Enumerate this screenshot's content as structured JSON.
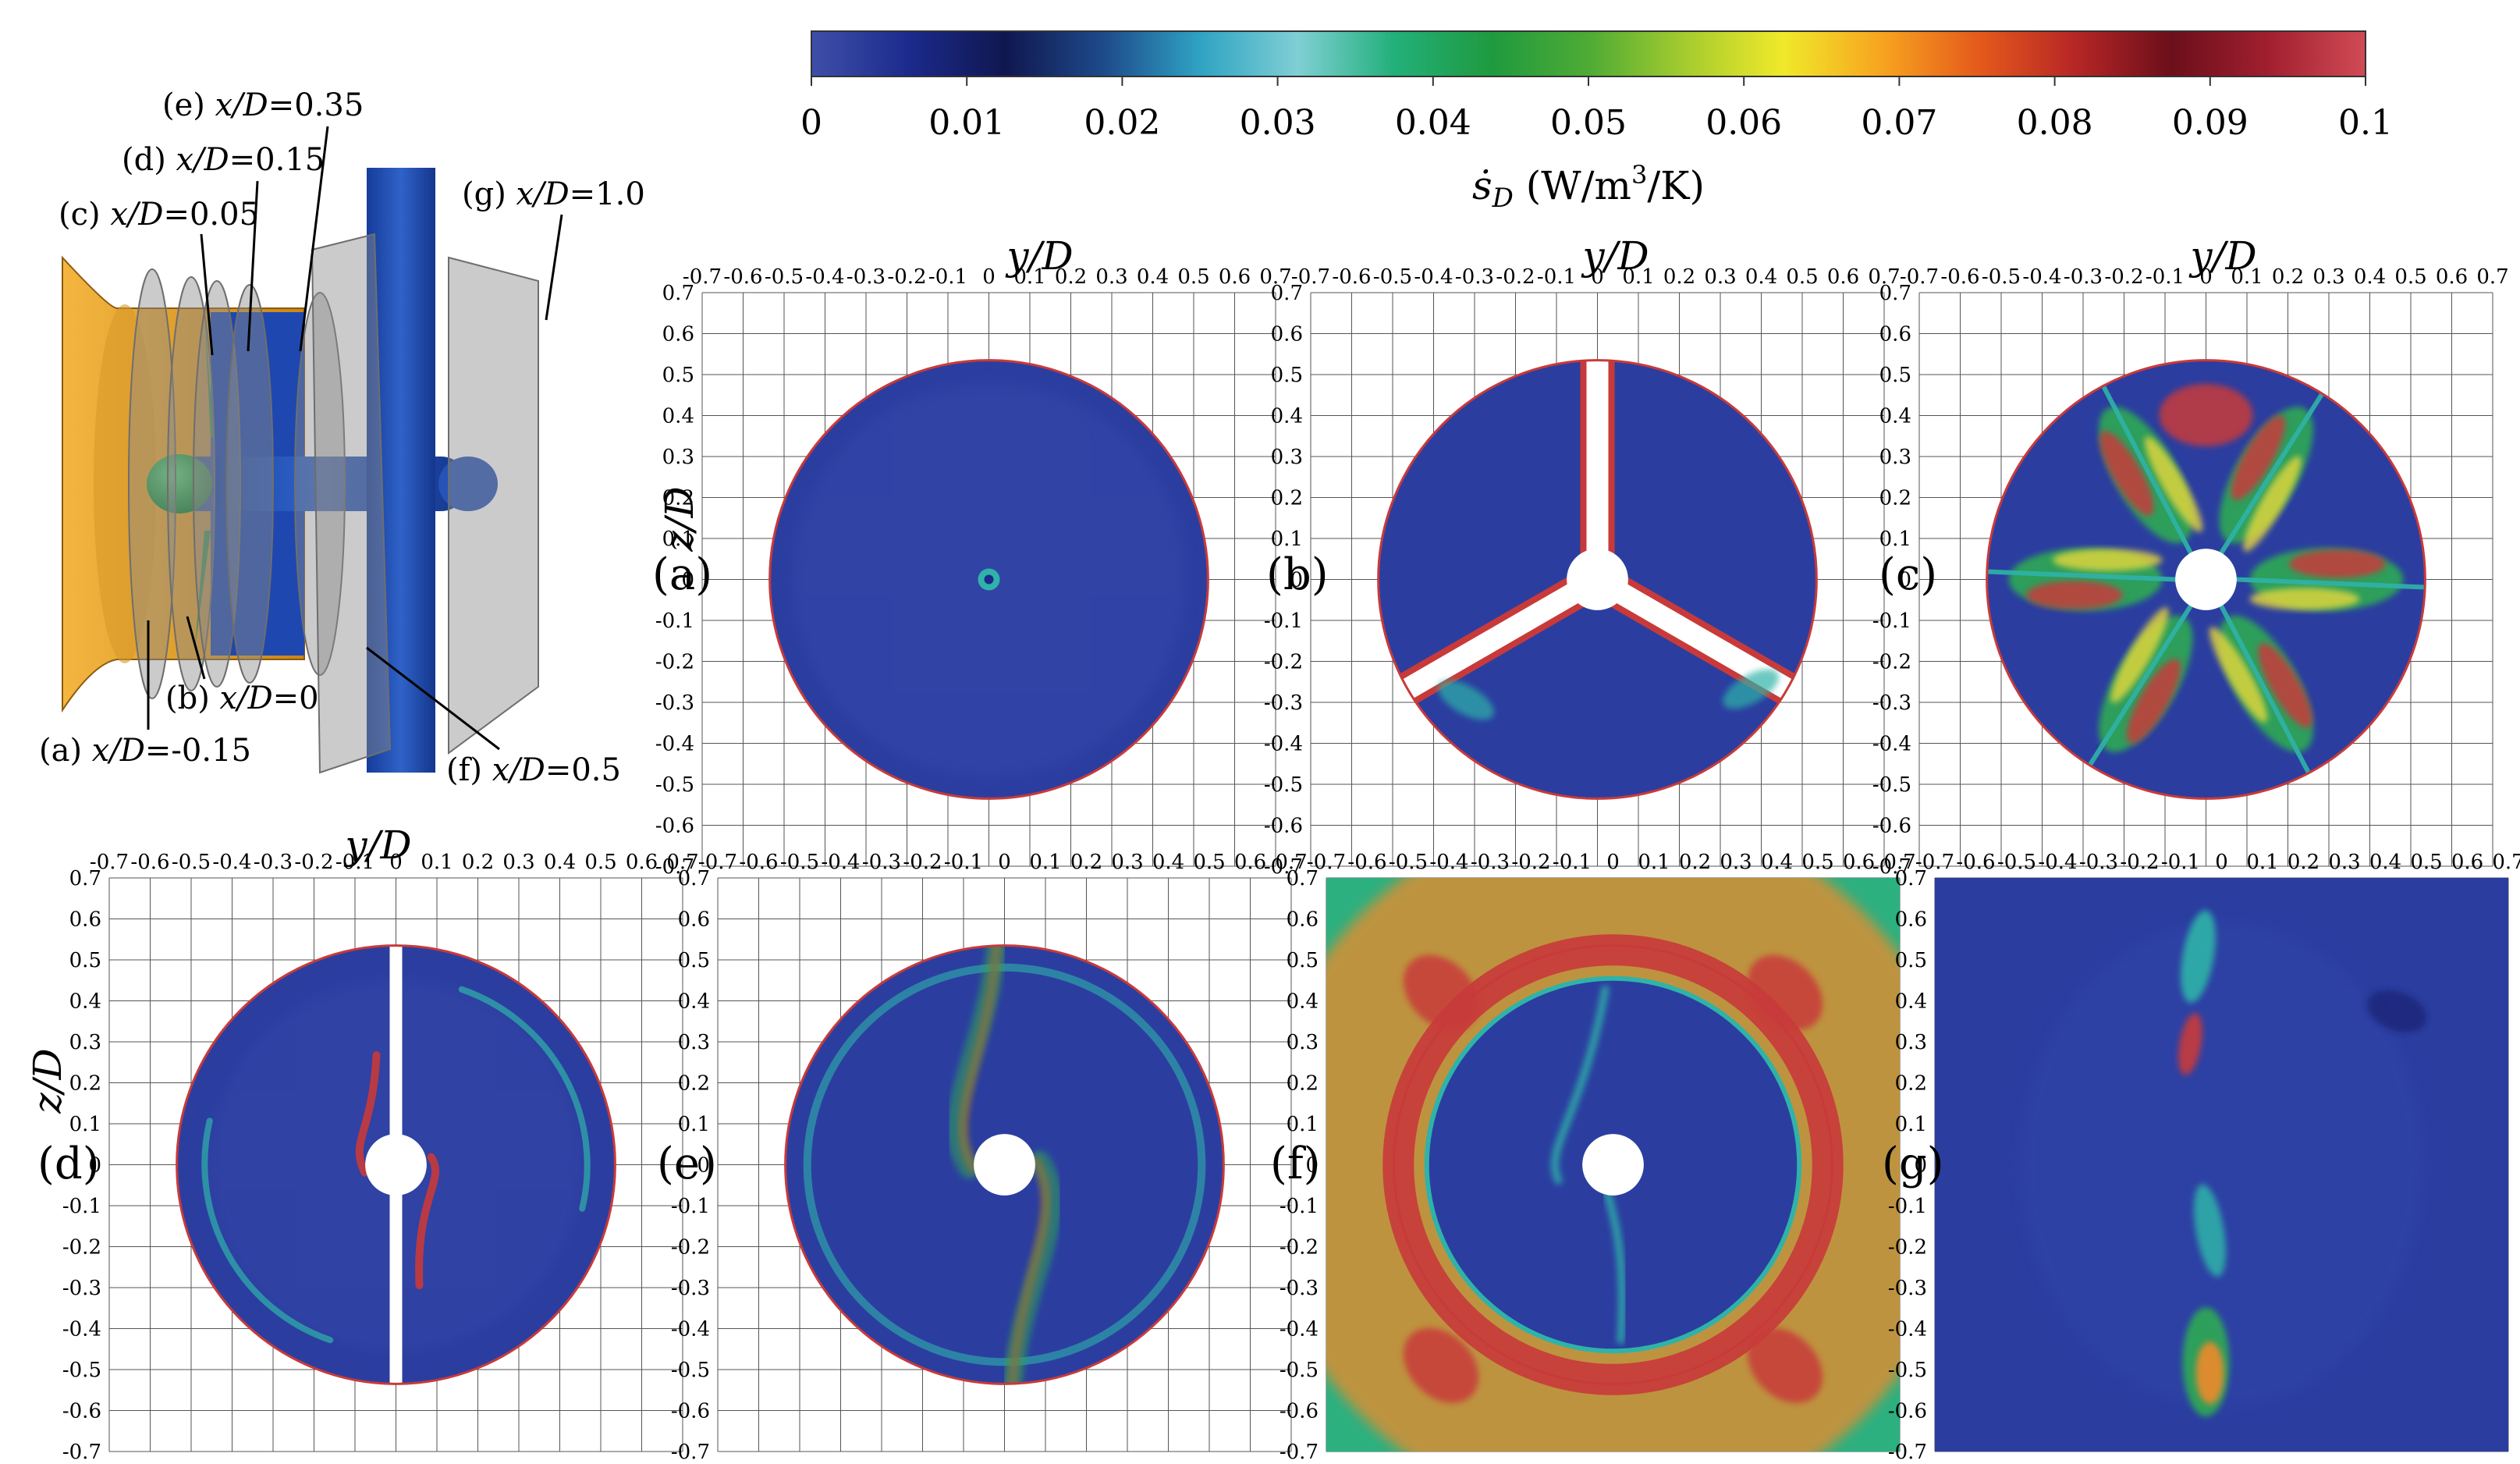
{
  "figure": {
    "colorbar": {
      "ticks": [
        "0",
        "0.01",
        "0.02",
        "0.03",
        "0.04",
        "0.05",
        "0.06",
        "0.07",
        "0.08",
        "0.09",
        "0.1"
      ],
      "label_symbol": "ṡ",
      "label_subscript": "D",
      "label_units_pre": " (W/m",
      "label_units_sup": "3",
      "label_units_post": "/K)",
      "stops": [
        "#3f4fa8",
        "#1b2a8c",
        "#10174f",
        "#1e4a8a",
        "#2fa3c3",
        "#7fcfd4",
        "#22b07a",
        "#1f9a3f",
        "#4eab35",
        "#a6cc2e",
        "#f0e92a",
        "#f7a51f",
        "#e55b1b",
        "#b72626",
        "#6b0f1a",
        "#a11f2f",
        "#d04b55"
      ]
    },
    "axis": {
      "ticks": [
        "-0.7",
        "-0.6",
        "-0.5",
        "-0.4",
        "-0.3",
        "-0.2",
        "-0.1",
        "0",
        "0.1",
        "0.2",
        "0.3",
        "0.4",
        "0.5",
        "0.6",
        "0.7"
      ],
      "x_label": "y/D",
      "y_label": "z/D"
    },
    "schematic": {
      "labels": [
        "(a) x/D=-0.15",
        "(b) x/D=0",
        "(c) x/D=0.05",
        "(d) x/D=0.15",
        "(e) x/D=0.35",
        "(f) x/D=0.5",
        "(g) x/D=1.0"
      ],
      "colors": {
        "duct": "#e6a02a",
        "hub": "#22a84a",
        "tower": "#1f48a8",
        "plane": "#9a9a9a"
      }
    },
    "panels": [
      {
        "id": "a",
        "label": "(a)",
        "field": "quiet"
      },
      {
        "id": "b",
        "label": "(b)",
        "field": "blades"
      },
      {
        "id": "c",
        "label": "(c)",
        "field": "rotor"
      },
      {
        "id": "d",
        "label": "(d)",
        "field": "split"
      },
      {
        "id": "e",
        "label": "(e)",
        "field": "wake-s"
      },
      {
        "id": "f",
        "label": "(f)",
        "field": "outer"
      },
      {
        "id": "g",
        "label": "(g)",
        "field": "far"
      }
    ]
  }
}
